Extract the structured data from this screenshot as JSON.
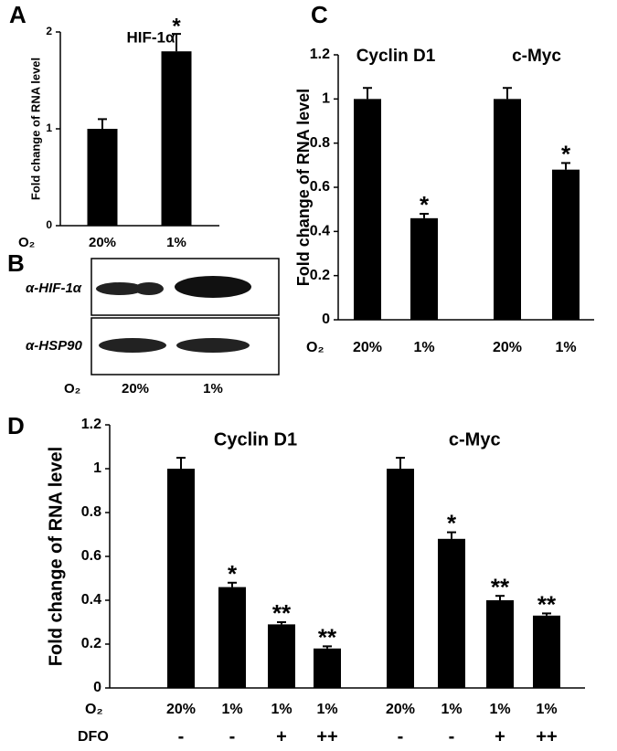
{
  "chart_data": [
    {
      "type": "bar",
      "panel": "A",
      "title": "HIF-1α",
      "y_label": "Fold change of RNA level",
      "x_label": "O₂",
      "categories": [
        "20%",
        "1%"
      ],
      "values": [
        1.0,
        1.8
      ],
      "errors": [
        0.1,
        0.18
      ],
      "significance": [
        null,
        "*"
      ],
      "color": "#000000",
      "ylim": [
        0,
        2
      ],
      "yticks": [
        0,
        1,
        2
      ]
    },
    {
      "type": "bar",
      "panel": "C",
      "y_label": "Fold change of RNA level",
      "x_label": "O₂",
      "groups": [
        "Cyclin D1",
        "c-Myc"
      ],
      "categories": [
        "20%",
        "1%",
        "20%",
        "1%"
      ],
      "values": [
        1.0,
        0.46,
        1.0,
        0.68
      ],
      "errors": [
        0.05,
        0.02,
        0.05,
        0.03
      ],
      "significance": [
        null,
        "*",
        null,
        "*"
      ],
      "color": "#000000",
      "ylim": [
        0,
        1.2
      ],
      "yticks": [
        0,
        0.2,
        0.4,
        0.6,
        0.8,
        1,
        1.2
      ]
    },
    {
      "type": "bar",
      "panel": "D",
      "y_label": "Fold change of RNA level",
      "x_label": "O₂",
      "groups": [
        "Cyclin D1",
        "c-Myc"
      ],
      "categories": [
        "20%",
        "1%",
        "1%",
        "1%",
        "20%",
        "1%",
        "1%",
        "1%"
      ],
      "dfo_label": "DFO",
      "dfo": [
        "-",
        "-",
        "+",
        "++",
        "-",
        "-",
        "+",
        "++"
      ],
      "values": [
        1.0,
        0.46,
        0.29,
        0.18,
        1.0,
        0.68,
        0.4,
        0.33
      ],
      "errors": [
        0.05,
        0.02,
        0.01,
        0.01,
        0.05,
        0.03,
        0.02,
        0.01
      ],
      "significance": [
        null,
        "*",
        "**",
        "**",
        null,
        "*",
        "**",
        "**"
      ],
      "color": "#000000",
      "ylim": [
        0,
        1.2
      ],
      "yticks": [
        0,
        0.2,
        0.4,
        0.6,
        0.8,
        1,
        1.2
      ]
    }
  ],
  "blot": {
    "panel": "B",
    "rows": [
      "α-HIF-1α",
      "α-HSP90"
    ],
    "x_label": "O₂",
    "lanes": [
      "20%",
      "1%"
    ]
  }
}
